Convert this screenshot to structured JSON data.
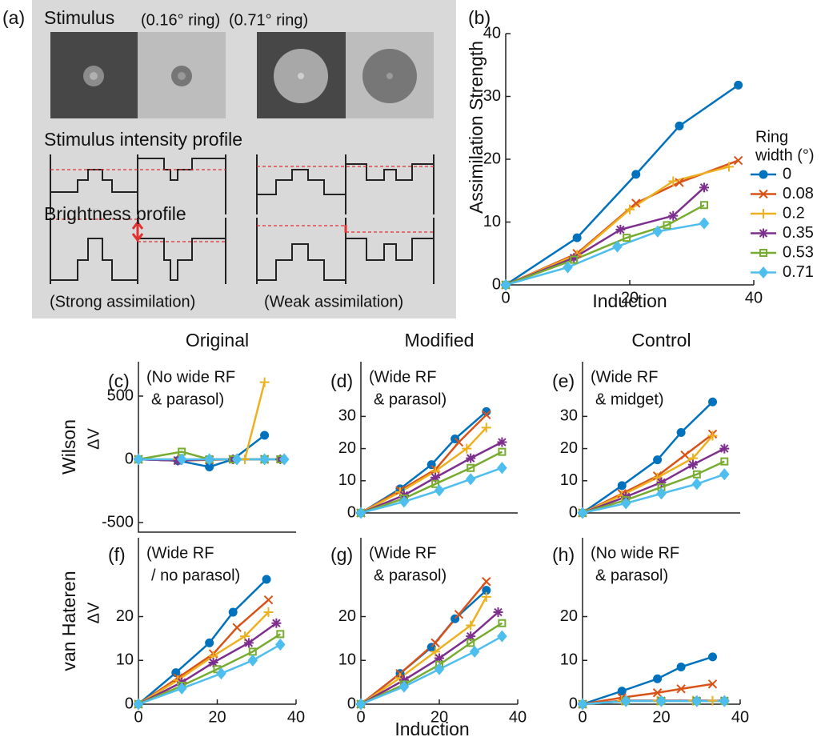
{
  "panel_a": {
    "label": "(a)",
    "stimulus": "Stimulus",
    "ring_small": "(0.16° ring)",
    "ring_large": "(0.71° ring)",
    "intensity_profile": "Stimulus intensity profile",
    "brightness_profile": "Brightness profile",
    "strong": "(Strong assimilation)",
    "weak": "(Weak assimilation)"
  },
  "chart_data": [
    {
      "type": "line",
      "panel_label": "(b)",
      "xlabel": "Induction",
      "ylabel": "Assimilation Strength",
      "xlim": [
        0,
        40
      ],
      "xticks": [
        0,
        20,
        40
      ],
      "ylim": [
        0,
        40
      ],
      "yticks": [
        0,
        10,
        20,
        30,
        40
      ],
      "legend": "right",
      "legend_title": [
        "Ring",
        "width (°)"
      ],
      "series": [
        {
          "name": "0",
          "color": "#0072bd",
          "marker": "circle",
          "x": [
            0,
            11.5,
            21,
            28,
            37.5
          ],
          "values": [
            0,
            7.5,
            17.6,
            25.3,
            31.8
          ]
        },
        {
          "name": "0.08",
          "color": "#d95319",
          "marker": "x",
          "x": [
            0,
            11.5,
            21,
            28,
            37.5
          ],
          "values": [
            0,
            5,
            13,
            16.3,
            19.8
          ]
        },
        {
          "name": "0.2",
          "color": "#edb120",
          "marker": "plus",
          "x": [
            0,
            11.5,
            20,
            27,
            36
          ],
          "values": [
            0,
            4.8,
            12,
            16.5,
            18.8
          ]
        },
        {
          "name": "0.35",
          "color": "#7e2f8e",
          "marker": "star",
          "x": [
            0,
            11,
            18.5,
            27,
            32
          ],
          "values": [
            0,
            4.3,
            8.8,
            11,
            15.5
          ]
        },
        {
          "name": "0.53",
          "color": "#77ac30",
          "marker": "square",
          "x": [
            0,
            11,
            19.5,
            26,
            32
          ],
          "values": [
            0,
            4,
            7.5,
            9.5,
            12.7
          ]
        },
        {
          "name": "0.71",
          "color": "#4dbeee",
          "marker": "diamond",
          "x": [
            0,
            10,
            18,
            24.5,
            32
          ],
          "values": [
            0,
            2.8,
            6.1,
            8.5,
            9.8
          ]
        }
      ]
    },
    {
      "type": "line",
      "panel_label": "(c)",
      "title": "Original",
      "row_label": "Wilson",
      "ylabel": "ΔV",
      "annotation": [
        "(No wide RF",
        "& parasol)"
      ],
      "xlim": [
        0,
        40
      ],
      "ylim": [
        -576,
        772
      ],
      "yticks": [
        -500,
        0,
        500
      ],
      "series": [
        {
          "color": "#0072bd",
          "marker": "circle",
          "x": [
            0,
            10,
            18,
            24,
            32
          ],
          "values": [
            0,
            -10,
            -60,
            0,
            190
          ]
        },
        {
          "color": "#d95319",
          "marker": "x",
          "x": [
            0,
            10,
            18,
            24,
            32
          ],
          "values": [
            0,
            -10,
            -5,
            0,
            0
          ]
        },
        {
          "color": "#edb120",
          "marker": "plus",
          "x": [
            0,
            10,
            18,
            24,
            27,
            32
          ],
          "values": [
            0,
            0,
            0,
            0,
            0,
            610
          ]
        },
        {
          "color": "#7e2f8e",
          "marker": "star",
          "x": [
            0,
            10,
            18,
            24,
            32,
            36
          ],
          "values": [
            0,
            -10,
            0,
            0,
            0,
            0
          ]
        },
        {
          "color": "#77ac30",
          "marker": "square",
          "x": [
            0,
            11,
            18,
            24,
            32,
            36
          ],
          "values": [
            0,
            60,
            0,
            0,
            0,
            0
          ]
        },
        {
          "color": "#4dbeee",
          "marker": "diamond",
          "x": [
            0,
            11,
            18,
            25,
            32,
            37
          ],
          "values": [
            0,
            0,
            0,
            0,
            0,
            0
          ]
        }
      ]
    },
    {
      "type": "line",
      "panel_label": "(d)",
      "title": "Modified",
      "annotation": [
        "(Wide RF",
        "& parasol)"
      ],
      "xlim": [
        0,
        40
      ],
      "ylim": [
        0,
        47
      ],
      "yticks": [
        0,
        10,
        20,
        30
      ],
      "series": [
        {
          "color": "#0072bd",
          "marker": "circle",
          "x": [
            0,
            10,
            18,
            24,
            32
          ],
          "values": [
            0,
            7.5,
            15,
            23,
            31.5
          ]
        },
        {
          "color": "#d95319",
          "marker": "x",
          "x": [
            0,
            10,
            19,
            25,
            32
          ],
          "values": [
            0,
            7,
            13.5,
            22,
            30.5
          ]
        },
        {
          "color": "#edb120",
          "marker": "plus",
          "x": [
            0,
            10,
            19,
            27,
            32
          ],
          "values": [
            0,
            6.5,
            13,
            20,
            26.5
          ]
        },
        {
          "color": "#7e2f8e",
          "marker": "star",
          "x": [
            0,
            11,
            19,
            28,
            36
          ],
          "values": [
            0,
            5.5,
            11,
            17,
            22
          ]
        },
        {
          "color": "#77ac30",
          "marker": "square",
          "x": [
            0,
            11,
            19,
            28,
            36
          ],
          "values": [
            0,
            4.5,
            9,
            14,
            19
          ]
        },
        {
          "color": "#4dbeee",
          "marker": "diamond",
          "x": [
            0,
            11,
            20,
            28,
            36
          ],
          "values": [
            0,
            3.5,
            7,
            10.5,
            14
          ]
        }
      ]
    },
    {
      "type": "line",
      "panel_label": "(e)",
      "title": "Control",
      "annotation": [
        "(Wide RF",
        "& midget)"
      ],
      "xlim": [
        0,
        40
      ],
      "ylim": [
        0,
        47
      ],
      "yticks": [
        0,
        10,
        20,
        30
      ],
      "series": [
        {
          "color": "#0072bd",
          "marker": "circle",
          "x": [
            0,
            10,
            19,
            25,
            33
          ],
          "values": [
            0,
            8.5,
            16.5,
            25,
            34.5
          ]
        },
        {
          "color": "#d95319",
          "marker": "x",
          "x": [
            0,
            10,
            19,
            26,
            33
          ],
          "values": [
            0,
            6,
            11.5,
            18,
            24.5
          ]
        },
        {
          "color": "#edb120",
          "marker": "plus",
          "x": [
            0,
            10,
            19,
            28,
            33
          ],
          "values": [
            0,
            5.5,
            11,
            17,
            24
          ]
        },
        {
          "color": "#7e2f8e",
          "marker": "star",
          "x": [
            0,
            11,
            20,
            28,
            36
          ],
          "values": [
            0,
            5,
            9.5,
            15,
            20
          ]
        },
        {
          "color": "#77ac30",
          "marker": "square",
          "x": [
            0,
            11,
            20,
            29,
            36
          ],
          "values": [
            0,
            4,
            8,
            12,
            16
          ]
        },
        {
          "color": "#4dbeee",
          "marker": "diamond",
          "x": [
            0,
            11,
            20,
            29,
            36
          ],
          "values": [
            0,
            3,
            6,
            9,
            12
          ]
        }
      ]
    },
    {
      "type": "line",
      "panel_label": "(f)",
      "row_label": "van Hateren",
      "ylabel": "ΔV",
      "annotation": [
        "(Wide RF",
        "/ no parasol)"
      ],
      "xlim": [
        0,
        40
      ],
      "xticks": [
        0,
        20,
        40
      ],
      "ylim": [
        0,
        38
      ],
      "yticks": [
        0,
        10,
        20
      ],
      "series": [
        {
          "color": "#0072bd",
          "marker": "circle",
          "x": [
            0,
            9.5,
            18,
            24,
            32.5
          ],
          "values": [
            0,
            7.2,
            14,
            21,
            28.5
          ]
        },
        {
          "color": "#d95319",
          "marker": "x",
          "x": [
            0,
            10,
            19,
            25,
            33
          ],
          "values": [
            0,
            6,
            11.5,
            17.5,
            23.8
          ]
        },
        {
          "color": "#edb120",
          "marker": "plus",
          "x": [
            0,
            10,
            19,
            27,
            33
          ],
          "values": [
            0,
            5.5,
            11,
            15.5,
            21
          ]
        },
        {
          "color": "#7e2f8e",
          "marker": "star",
          "x": [
            0,
            11,
            19,
            28,
            35
          ],
          "values": [
            0,
            5,
            9.5,
            14,
            18.5
          ]
        },
        {
          "color": "#77ac30",
          "marker": "square",
          "x": [
            0,
            11,
            20,
            29,
            36
          ],
          "values": [
            0,
            4.2,
            8,
            12,
            16
          ]
        },
        {
          "color": "#4dbeee",
          "marker": "diamond",
          "x": [
            0,
            11,
            21,
            29,
            36
          ],
          "values": [
            0,
            3.6,
            7,
            10,
            13.6
          ]
        }
      ]
    },
    {
      "type": "line",
      "panel_label": "(g)",
      "xlabel": "Induction",
      "annotation": [
        "(Wide RF",
        "& parasol)"
      ],
      "xlim": [
        0,
        40
      ],
      "xticks": [
        0,
        20,
        40
      ],
      "ylim": [
        0,
        38
      ],
      "yticks": [
        0,
        10,
        20
      ],
      "series": [
        {
          "color": "#0072bd",
          "marker": "circle",
          "x": [
            0,
            10,
            18,
            24,
            32
          ],
          "values": [
            0,
            7,
            13,
            19.5,
            26
          ]
        },
        {
          "color": "#d95319",
          "marker": "x",
          "x": [
            0,
            10,
            19,
            25,
            32
          ],
          "values": [
            0,
            7,
            14,
            20.5,
            28
          ]
        },
        {
          "color": "#edb120",
          "marker": "plus",
          "x": [
            0,
            10,
            19,
            28,
            32
          ],
          "values": [
            0,
            6,
            12,
            18,
            24.5
          ]
        },
        {
          "color": "#7e2f8e",
          "marker": "star",
          "x": [
            0,
            11,
            20,
            28,
            35
          ],
          "values": [
            0,
            5.5,
            10.5,
            15.5,
            21
          ]
        },
        {
          "color": "#77ac30",
          "marker": "square",
          "x": [
            0,
            11,
            20,
            28,
            36
          ],
          "values": [
            0,
            4.5,
            9,
            14,
            18.5
          ]
        },
        {
          "color": "#4dbeee",
          "marker": "diamond",
          "x": [
            0,
            11,
            20,
            29,
            36
          ],
          "values": [
            0,
            4,
            8,
            12,
            15.5
          ]
        }
      ]
    },
    {
      "type": "line",
      "panel_label": "(h)",
      "annotation": [
        "(No wide RF",
        "& parasol)"
      ],
      "xlim": [
        0,
        40
      ],
      "xticks": [
        0,
        20,
        40
      ],
      "ylim": [
        0,
        38
      ],
      "yticks": [
        0,
        10,
        20
      ],
      "series": [
        {
          "color": "#0072bd",
          "marker": "circle",
          "x": [
            0,
            10,
            19,
            25,
            33
          ],
          "values": [
            0,
            3,
            5.8,
            8.5,
            10.8
          ]
        },
        {
          "color": "#d95319",
          "marker": "x",
          "x": [
            0,
            10,
            19,
            25,
            33
          ],
          "values": [
            0,
            1.5,
            2.6,
            3.5,
            4.6
          ]
        },
        {
          "color": "#edb120",
          "marker": "plus",
          "x": [
            0,
            10,
            19,
            28,
            33
          ],
          "values": [
            0,
            0.8,
            0.8,
            0.8,
            0.8
          ]
        },
        {
          "color": "#7e2f8e",
          "marker": "star",
          "x": [
            0,
            11,
            20,
            29,
            36
          ],
          "values": [
            0,
            0.8,
            0.8,
            0.8,
            0.8
          ]
        },
        {
          "color": "#77ac30",
          "marker": "square",
          "x": [
            0,
            11,
            20,
            29,
            36
          ],
          "values": [
            0,
            0.7,
            0.7,
            0.7,
            0.7
          ]
        },
        {
          "color": "#4dbeee",
          "marker": "diamond",
          "x": [
            0,
            11,
            20,
            29,
            36
          ],
          "values": [
            0,
            0.7,
            0.7,
            0.7,
            0.7
          ]
        }
      ]
    }
  ]
}
